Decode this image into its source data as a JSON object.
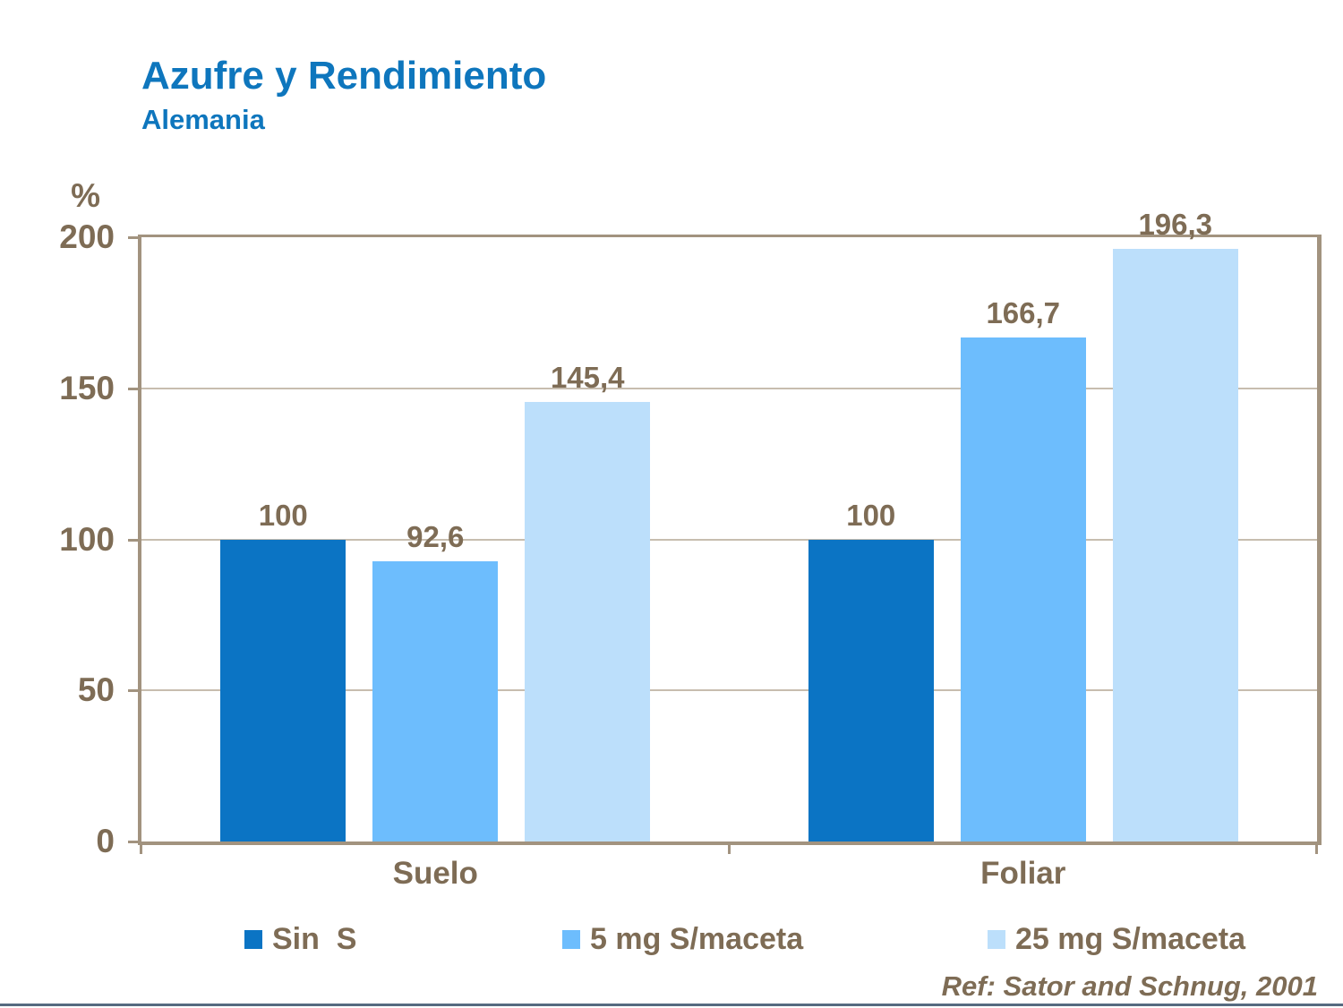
{
  "page": {
    "title": "Azufre y Rendimiento",
    "subtitle": "Alemania",
    "reference": "Ref: Sator and Schnug, 2001"
  },
  "chart_data": {
    "type": "bar",
    "title": "Azufre y Rendimiento",
    "subtitle": "Alemania",
    "ylabel": "%",
    "xlabel": "",
    "ylim": [
      0,
      200
    ],
    "yticks": [
      0,
      50,
      100,
      150,
      200
    ],
    "grid": true,
    "legend_position": "bottom",
    "categories": [
      "Suelo",
      "Foliar"
    ],
    "series": [
      {
        "name": "Sin  S",
        "color": "#0B74C4",
        "values": [
          100,
          100
        ],
        "labels": [
          "100",
          "100"
        ]
      },
      {
        "name": "5 mg S/maceta",
        "color": "#6DBDFD",
        "values": [
          92.6,
          166.7
        ],
        "labels": [
          "92,6",
          "166,7"
        ]
      },
      {
        "name": "25 mg S/maceta",
        "color": "#BCDFFB",
        "values": [
          145.4,
          196.3
        ],
        "labels": [
          "145,4",
          "196,3"
        ]
      }
    ],
    "annotation": "Ref: Sator and Schnug, 2001"
  },
  "colors": {
    "title_blue": "#0E76BD",
    "text_brown": "#7E6C55",
    "axis_tan": "#A2937F",
    "gridline_tan": "#C7BDAF",
    "bottom_rule": "#566A80",
    "bar_sin_s": "#0B74C4",
    "bar_5mg": "#6DBDFD",
    "bar_25mg": "#BCDFFB"
  }
}
